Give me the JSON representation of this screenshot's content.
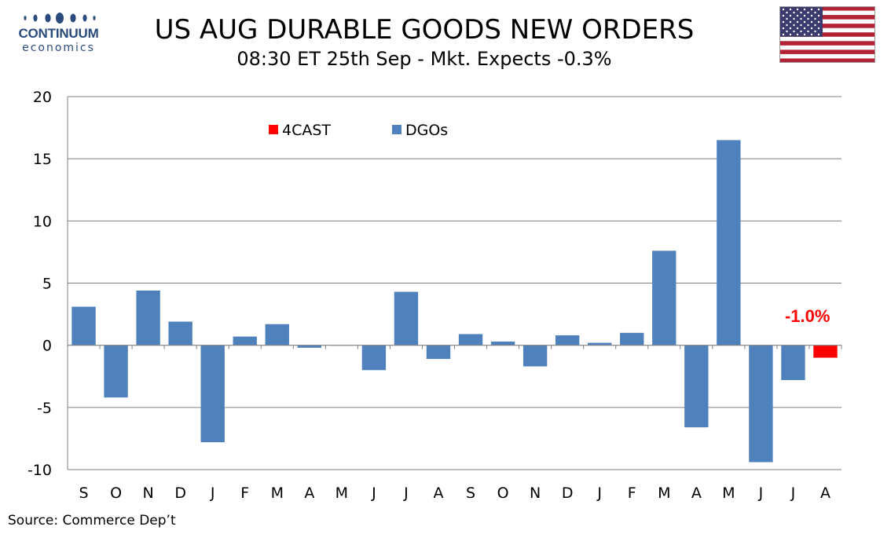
{
  "header": {
    "logo_name": "CONTINUUM",
    "logo_sub": "economics",
    "title": "US AUG DURABLE GOODS NEW ORDERS",
    "subtitle": "08:30 ET 25th Sep - Mkt. Expects -0.3%"
  },
  "footer": {
    "source": "Source: Commerce Dep’t"
  },
  "colors": {
    "dgo": "#4f81bd",
    "forecast": "#ff0000",
    "grid": "#808080",
    "logo": "#2a4a7c"
  },
  "chart_data": {
    "type": "bar",
    "categories": [
      "S",
      "O",
      "N",
      "D",
      "J",
      "F",
      "M",
      "A",
      "M",
      "J",
      "J",
      "A",
      "S",
      "O",
      "N",
      "D",
      "J",
      "F",
      "M",
      "A",
      "M",
      "J",
      "J",
      "A"
    ],
    "series": [
      {
        "name": "4CAST",
        "color": "#ff0000",
        "values": [
          null,
          null,
          null,
          null,
          null,
          null,
          null,
          null,
          null,
          null,
          null,
          null,
          null,
          null,
          null,
          null,
          null,
          null,
          null,
          null,
          null,
          null,
          null,
          -1.0
        ]
      },
      {
        "name": "DGOs",
        "color": "#4f81bd",
        "values": [
          3.1,
          -4.2,
          4.4,
          1.9,
          -7.8,
          0.7,
          1.7,
          -0.2,
          0.0,
          -2.0,
          4.3,
          -1.1,
          0.9,
          0.3,
          -1.7,
          0.8,
          0.2,
          1.0,
          7.6,
          -6.6,
          16.5,
          -9.4,
          -2.8,
          null
        ]
      }
    ],
    "annotation": "-1.0%",
    "yticks": [
      "20",
      "15",
      "10",
      "5",
      "0",
      "-5",
      "-10"
    ],
    "ylim": [
      -10,
      20
    ],
    "grid": true,
    "legend_position": "top-center"
  }
}
